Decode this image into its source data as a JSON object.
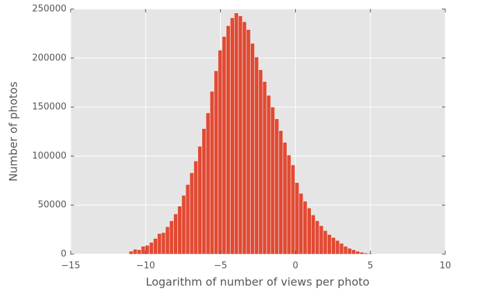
{
  "chart_data": {
    "type": "histogram",
    "x_label": "Logarithm of number of views per photo",
    "y_label": "Number of photos",
    "bins": [
      -11.1,
      -10.83,
      -10.56,
      -10.29,
      -10.02,
      -9.75,
      -9.48,
      -9.21,
      -8.94,
      -8.67,
      -8.4,
      -8.13,
      -7.86,
      -7.59,
      -7.32,
      -7.05,
      -6.78,
      -6.51,
      -6.24,
      -5.97,
      -5.7,
      -5.43,
      -5.16,
      -4.89,
      -4.62,
      -4.35,
      -4.08,
      -3.81,
      -3.54,
      -3.27,
      -3,
      -2.73,
      -2.46,
      -2.19,
      -1.92,
      -1.65,
      -1.38,
      -1.11,
      -0.84,
      -0.57,
      -0.3,
      -0.03,
      0.24,
      0.51,
      0.78,
      1.05,
      1.32,
      1.59,
      1.86,
      2.13,
      2.4,
      2.67,
      2.94,
      3.21,
      3.48,
      3.75,
      4.02,
      4.29,
      4.56,
      4.83,
      5.1,
      5.37
    ],
    "values": [
      3000,
      5000,
      4500,
      8000,
      9000,
      12000,
      16000,
      21000,
      22000,
      28000,
      34000,
      41000,
      49000,
      60000,
      71000,
      83000,
      95000,
      110000,
      128000,
      144000,
      166000,
      187000,
      208000,
      222000,
      233000,
      241000,
      246000,
      243000,
      237000,
      229000,
      215000,
      201000,
      188000,
      176000,
      162000,
      150000,
      138000,
      126000,
      114000,
      101000,
      91000,
      73000,
      62000,
      54000,
      47000,
      40000,
      34000,
      29000,
      24000,
      20000,
      17000,
      14000,
      11000,
      8000,
      6000,
      4500,
      3000,
      2000,
      1200,
      700,
      400
    ],
    "color": "#e24a33",
    "xlim": [
      -15,
      10
    ],
    "xticks": [
      {
        "value": -15,
        "label": "−15"
      },
      {
        "value": -10,
        "label": "−10"
      },
      {
        "value": -5,
        "label": "−5"
      },
      0,
      5,
      10
    ],
    "ylim": [
      0,
      250000
    ],
    "yticks": [
      0,
      50000,
      100000,
      150000,
      200000,
      250000
    ],
    "grid": true
  }
}
